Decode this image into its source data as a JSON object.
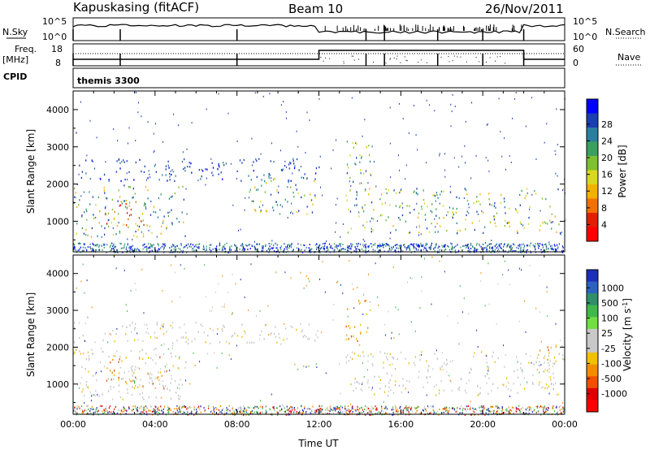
{
  "header": {
    "station": "Kapuskasing (fitACF)",
    "beam": "Beam 10",
    "date": "26/Nov/2011"
  },
  "status_panels": {
    "nsky_label": "N.Sky",
    "nsky_ticks": [
      "10^5",
      "10^0"
    ],
    "nsearch_label": "N.Search",
    "nsearch_ticks": [
      "10^5",
      "10^0"
    ],
    "freq_label_1": "Freq.",
    "freq_label_2": "[MHz]",
    "freq_ticks": [
      "18",
      "8"
    ],
    "nave_label": "Nave",
    "nave_ticks": [
      "60",
      "0"
    ],
    "cpid_label": "CPID",
    "cpid_value": "themis 3300"
  },
  "chart_data": [
    {
      "type": "heatmap",
      "name": "power-panel",
      "ylabel": "Slant Range [km]",
      "yticks": [
        1000,
        2000,
        3000,
        4000
      ],
      "ylim": [
        180,
        4500
      ],
      "xlabel": "Time UT",
      "xticks": [
        "00:00",
        "04:00",
        "08:00",
        "12:00",
        "16:00",
        "20:00",
        "00:00"
      ],
      "xlim_hours": [
        0,
        24
      ],
      "colorbar": {
        "label": "Power [dB]",
        "ticks": [
          "4",
          "8",
          "12",
          "16",
          "20",
          "24",
          "28"
        ],
        "colors": [
          "#0000ff",
          "#1a3fb0",
          "#2a7fa0",
          "#3aa060",
          "#7dc030",
          "#d8d820",
          "#f2b000",
          "#f07000",
          "#e02000",
          "#ff0000"
        ]
      },
      "regions": [
        {
          "t0": 0.0,
          "t1": 5.5,
          "r0": 600,
          "r1": 2000,
          "level": "medium"
        },
        {
          "t0": 1.5,
          "t1": 3.5,
          "r0": 900,
          "r1": 1600,
          "level": "strong"
        },
        {
          "t0": 0.0,
          "t1": 12.0,
          "r0": 2100,
          "r1": 2700,
          "level": "weak"
        },
        {
          "t0": 8.5,
          "t1": 12.0,
          "r0": 1200,
          "r1": 2200,
          "level": "medium"
        },
        {
          "t0": 13.3,
          "t1": 24.0,
          "r0": 700,
          "r1": 1900,
          "level": "medium"
        },
        {
          "t0": 13.3,
          "t1": 14.5,
          "r0": 2000,
          "r1": 3300,
          "level": "medium"
        }
      ]
    },
    {
      "type": "heatmap",
      "name": "velocity-panel",
      "ylabel": "Slant Range [km]",
      "yticks": [
        1000,
        2000,
        3000,
        4000
      ],
      "ylim": [
        180,
        4500
      ],
      "xlabel": "Time UT",
      "xticks": [
        "00:00",
        "04:00",
        "08:00",
        "12:00",
        "16:00",
        "20:00",
        "00:00"
      ],
      "xlim_hours": [
        0,
        24
      ],
      "colorbar": {
        "label": "Velocity [m s^-1]",
        "ticks": [
          "1000",
          "500",
          "100",
          "25",
          "-25",
          "-100",
          "-500",
          "-1000"
        ],
        "colors": [
          "#1c2fb8",
          "#2a62c0",
          "#2f8f6a",
          "#41b84a",
          "#6fe040",
          "#c8c8c8",
          "#c8c8c8",
          "#f2c000",
          "#f28c00",
          "#f05000",
          "#e00000",
          "#ff0000"
        ]
      },
      "regions": [
        {
          "t0": 0.0,
          "t1": 5.5,
          "r0": 600,
          "r1": 2000,
          "level": "ground"
        },
        {
          "t0": 1.5,
          "t1": 5.0,
          "r0": 900,
          "r1": 1800,
          "level": "negative"
        },
        {
          "t0": 0.0,
          "t1": 12.0,
          "r0": 2100,
          "r1": 2700,
          "level": "ground"
        },
        {
          "t0": 13.3,
          "t1": 24.0,
          "r0": 700,
          "r1": 1900,
          "level": "ground"
        },
        {
          "t0": 22.5,
          "t1": 24.0,
          "r0": 1600,
          "r1": 2200,
          "level": "negative"
        },
        {
          "t0": 13.3,
          "t1": 14.5,
          "r0": 2000,
          "r1": 3300,
          "level": "negative"
        }
      ]
    }
  ]
}
